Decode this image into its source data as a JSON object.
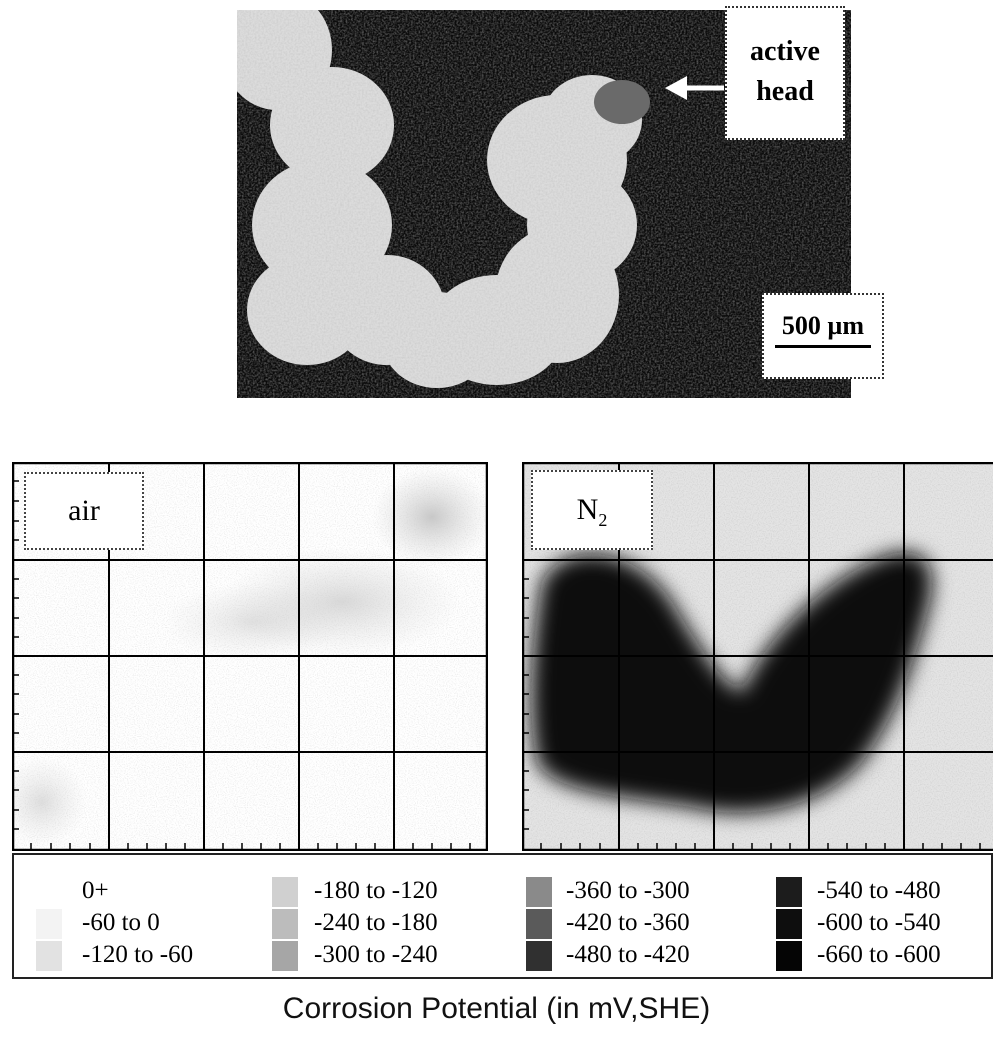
{
  "micrograph": {
    "callout_active": [
      "active",
      "head"
    ],
    "scale_label": "500 µm"
  },
  "maps": {
    "air_label": "air",
    "n2_label_base": "N",
    "n2_label_sub": "2"
  },
  "legend": {
    "items": [
      {
        "label": "0+",
        "color": "#ffffff"
      },
      {
        "label": "-60 to 0",
        "color": "#f3f3f3"
      },
      {
        "label": "-120 to -60",
        "color": "#e2e2e2"
      },
      {
        "label": "-180 to -120",
        "color": "#d0d0d0"
      },
      {
        "label": "-240 to -180",
        "color": "#bcbcbc"
      },
      {
        "label": "-300 to -240",
        "color": "#a6a6a6"
      },
      {
        "label": "-360 to -300",
        "color": "#8a8a8a"
      },
      {
        "label": "-420 to -360",
        "color": "#5a5a5a"
      },
      {
        "label": "-480 to -420",
        "color": "#303030"
      },
      {
        "label": "-540 to -480",
        "color": "#1c1c1c"
      },
      {
        "label": "-600 to -540",
        "color": "#0e0e0e"
      },
      {
        "label": "-660 to -600",
        "color": "#050505"
      }
    ]
  },
  "caption": "Corrosion Potential (in mV,SHE)"
}
